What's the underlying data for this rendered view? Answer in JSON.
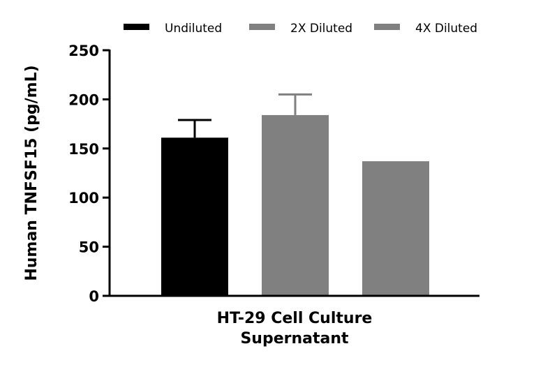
{
  "chart_data": {
    "type": "bar",
    "title": "",
    "xlabel": [
      "HT-29 Cell Culture",
      "Supernatant"
    ],
    "ylabel": "Human TNFSF15 (pg/mL)",
    "ylim": [
      0,
      250
    ],
    "yticks": [
      0,
      50,
      100,
      150,
      200,
      250
    ],
    "grid": false,
    "legend_position": "top",
    "categories": [
      "HT-29 Cell Culture Supernatant"
    ],
    "series": [
      {
        "name": "Undiluted",
        "values": [
          161
        ],
        "error": [
          18
        ],
        "color": "#000000"
      },
      {
        "name": "2X Diluted",
        "values": [
          184
        ],
        "error": [
          21
        ],
        "color": "#808080"
      },
      {
        "name": "4X Diluted",
        "values": [
          137
        ],
        "error": [
          0
        ],
        "color": "#808080"
      }
    ]
  }
}
